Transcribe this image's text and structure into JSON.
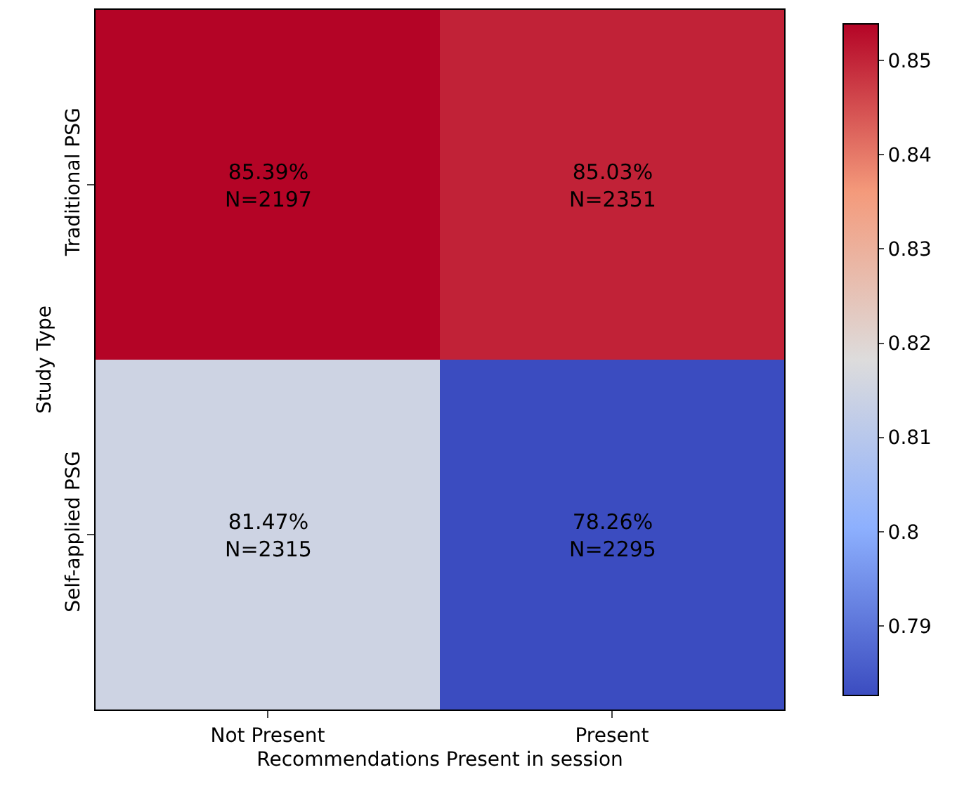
{
  "chart_data": {
    "type": "heatmap",
    "xlabel": "Recommendations Present in session",
    "ylabel": "Study Type",
    "categories": [
      "Not Present",
      "Present"
    ],
    "y_categories": [
      "Traditional PSG",
      "Self-applied PSG"
    ],
    "cells": [
      [
        0.8539,
        0.8503
      ],
      [
        0.8147,
        0.7826
      ]
    ],
    "cell_labels": [
      [
        "85.39%\nN=2197",
        "85.03%\nN=2351"
      ],
      [
        "81.47%\nN=2315",
        "78.26%\nN=2295"
      ]
    ],
    "clim": [
      0.7826,
      0.8539
    ],
    "cticks": [
      0.79,
      0.8,
      0.81,
      0.82,
      0.83,
      0.84,
      0.85
    ]
  }
}
